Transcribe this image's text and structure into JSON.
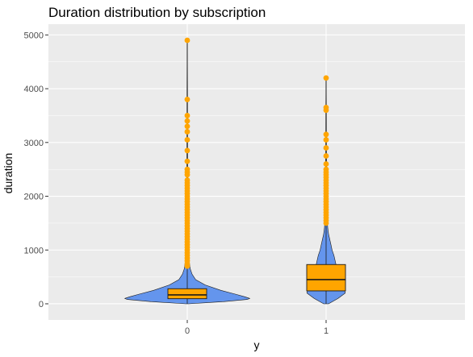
{
  "chart_data": {
    "type": "violin",
    "title": "Duration distribution by subscription",
    "xlabel": "y",
    "ylabel": "duration",
    "categories": [
      "0",
      "1"
    ],
    "ylim": [
      -300,
      5200
    ],
    "yticks": [
      0,
      1000,
      2000,
      3000,
      4000,
      5000
    ],
    "grid": true,
    "colors": {
      "panel": "#ebebeb",
      "grid": "#ffffff",
      "violin_fill": "#6495ed",
      "box_fill": "#ffa500",
      "outlier": "#ffa500"
    },
    "groups": [
      {
        "category": "0",
        "box": {
          "q1": 95,
          "median": 165,
          "q3": 280,
          "whisker_low": 0,
          "whisker_high": 650,
          "max": 4900
        },
        "density": [
          [
            0,
            0.01
          ],
          [
            40,
            0.3
          ],
          [
            80,
            0.5
          ],
          [
            100,
            0.52
          ],
          [
            130,
            0.48
          ],
          [
            180,
            0.4
          ],
          [
            250,
            0.28
          ],
          [
            350,
            0.15
          ],
          [
            450,
            0.07
          ],
          [
            550,
            0.04
          ],
          [
            650,
            0.025
          ],
          [
            800,
            0.015
          ],
          [
            1000,
            0.01
          ],
          [
            1300,
            0.006
          ],
          [
            2000,
            0.004
          ],
          [
            3000,
            0.003
          ],
          [
            4000,
            0.002
          ],
          [
            4900,
            0.001
          ]
        ],
        "outliers": [
          700,
          750,
          800,
          850,
          900,
          950,
          1000,
          1050,
          1100,
          1150,
          1200,
          1250,
          1300,
          1350,
          1400,
          1450,
          1500,
          1550,
          1600,
          1650,
          1700,
          1750,
          1800,
          1850,
          1900,
          1950,
          2000,
          2050,
          2100,
          2150,
          2200,
          2250,
          2300,
          2400,
          2450,
          2500,
          2650,
          2850,
          3050,
          3200,
          3300,
          3400,
          3500,
          3800,
          4900
        ]
      },
      {
        "category": "1",
        "box": {
          "q1": 240,
          "median": 450,
          "q3": 730,
          "whisker_low": 0,
          "whisker_high": 1460,
          "max": 4200
        },
        "density": [
          [
            0,
            0.02
          ],
          [
            100,
            0.1
          ],
          [
            200,
            0.16
          ],
          [
            300,
            0.15
          ],
          [
            400,
            0.13
          ],
          [
            500,
            0.11
          ],
          [
            600,
            0.095
          ],
          [
            700,
            0.085
          ],
          [
            800,
            0.075
          ],
          [
            900,
            0.065
          ],
          [
            1000,
            0.05
          ],
          [
            1100,
            0.04
          ],
          [
            1200,
            0.03
          ],
          [
            1300,
            0.02
          ],
          [
            1400,
            0.014
          ],
          [
            1600,
            0.008
          ],
          [
            2000,
            0.005
          ],
          [
            2500,
            0.004
          ],
          [
            3000,
            0.003
          ],
          [
            3600,
            0.002
          ],
          [
            4200,
            0.001
          ]
        ],
        "outliers": [
          1500,
          1550,
          1600,
          1650,
          1700,
          1750,
          1800,
          1850,
          1900,
          1950,
          2000,
          2050,
          2100,
          2150,
          2200,
          2250,
          2300,
          2350,
          2400,
          2450,
          2500,
          2600,
          2750,
          2900,
          3050,
          3150,
          3600,
          3650,
          4200
        ]
      }
    ]
  }
}
